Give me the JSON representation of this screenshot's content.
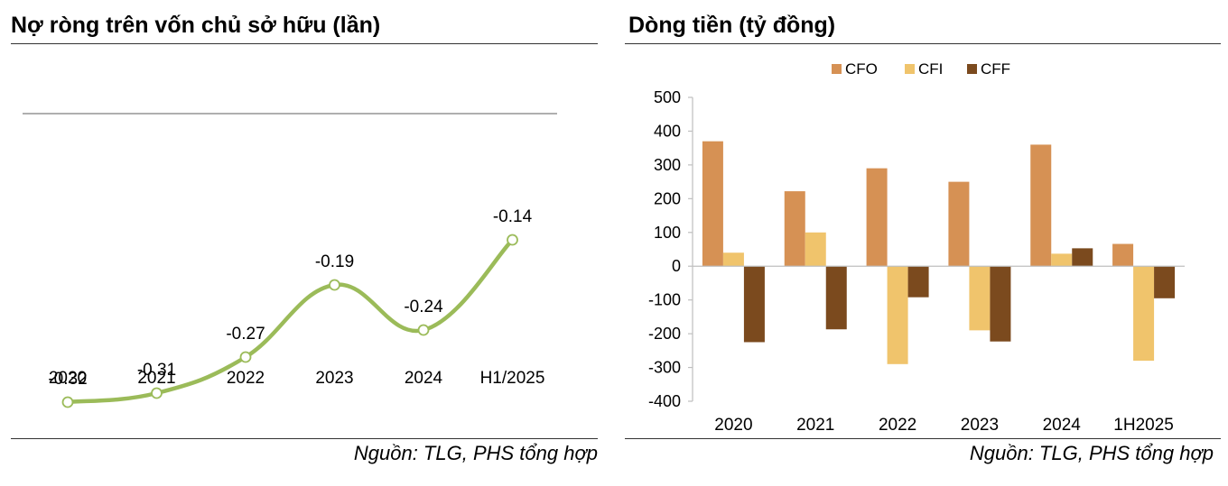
{
  "left": {
    "title": "Nợ ròng trên vốn chủ sở hữu (lần)",
    "source": "Nguồn: TLG, PHS tổng hợp"
  },
  "right": {
    "title": "Dòng tiền (tỷ đồng)",
    "source": "Nguồn: TLG, PHS tổng hợp"
  },
  "colors": {
    "line": "#9bbb59",
    "marker_fill": "#ffffff",
    "cfo": "#d69154",
    "cfi": "#f0c46c",
    "cff": "#7b4a1e",
    "axis": "#bfbfbf"
  },
  "chart_data": [
    {
      "type": "line",
      "title": "Nợ ròng trên vốn chủ sở hữu (lần)",
      "categories": [
        "2020",
        "2021",
        "2022",
        "2023",
        "2024",
        "H1/2025"
      ],
      "values": [
        -0.32,
        -0.31,
        -0.27,
        -0.19,
        -0.24,
        -0.14
      ],
      "labels": [
        "-0.32",
        "-0.31",
        "-0.27",
        "-0.19",
        "-0.24",
        "-0.14"
      ],
      "xlabel": "",
      "ylabel": "",
      "ylim": [
        -0.4,
        0.0
      ],
      "smooth": true,
      "grid": false
    },
    {
      "type": "bar",
      "title": "Dòng tiền (tỷ đồng)",
      "categories": [
        "2020",
        "2021",
        "2022",
        "2023",
        "2024",
        "1H2025"
      ],
      "series": [
        {
          "name": "CFO",
          "values": [
            370,
            222,
            290,
            250,
            360,
            66
          ]
        },
        {
          "name": "CFI",
          "values": [
            40,
            100,
            -290,
            -190,
            37,
            -280
          ]
        },
        {
          "name": "CFF",
          "values": [
            -225,
            -187,
            -92,
            -223,
            53,
            -95
          ]
        }
      ],
      "ylim": [
        -400,
        500
      ],
      "yticks": [
        500,
        400,
        300,
        200,
        100,
        0,
        -100,
        -200,
        -300,
        -400
      ],
      "legend": "top-center",
      "grid": false
    }
  ]
}
